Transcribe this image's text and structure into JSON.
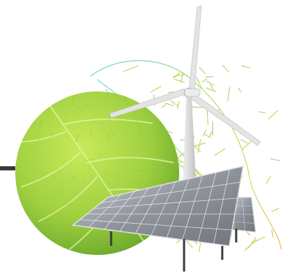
{
  "scene": {
    "colors": {
      "background": "#ffffff",
      "leaf_light": "#b8e04a",
      "leaf_mid": "#8cc63f",
      "leaf_dark": "#5f9e2a",
      "vein_cyan": "#5fd3c8",
      "vein_green": "#a8d84a",
      "vein_yellow": "#d8d24a",
      "vein_orange": "#e8a84a",
      "turbine": "#e8e8e8",
      "turbine_shade": "#bdbdbd",
      "panel_cell": "#8a8f99",
      "panel_cell_light": "#c9ccd2",
      "panel_frame": "#d9d9d9",
      "metal_dark": "#3a3a3a"
    },
    "elements": [
      "green-leaf-circle",
      "leaf-vein-skeleton",
      "wind-turbine",
      "solar-panel-array"
    ]
  }
}
